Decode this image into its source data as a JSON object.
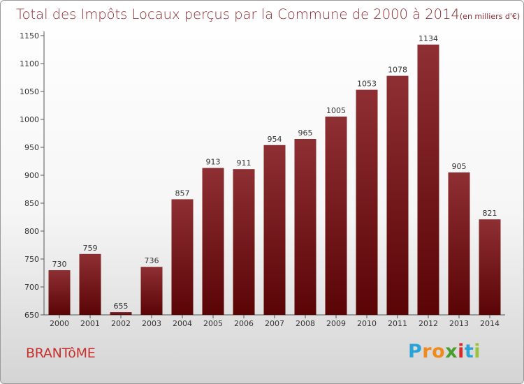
{
  "chart_data": {
    "type": "bar",
    "title": "Total des Impôts Locaux perçus par la Commune de 2000 à 2014",
    "subtitle": "(en milliers d'€)",
    "categories": [
      "2000",
      "2001",
      "2002",
      "2003",
      "2004",
      "2005",
      "2006",
      "2007",
      "2008",
      "2009",
      "2010",
      "2011",
      "2012",
      "2013",
      "2014"
    ],
    "values": [
      730,
      759,
      655,
      736,
      857,
      913,
      911,
      954,
      965,
      1005,
      1053,
      1078,
      1134,
      905,
      821
    ],
    "ylim": [
      650,
      1150
    ],
    "yticks": [
      650,
      700,
      750,
      800,
      850,
      900,
      950,
      1000,
      1050,
      1100,
      1150
    ],
    "grid": false,
    "bar_color": "#7a1518"
  },
  "footer": {
    "commune": "BRANTôME",
    "logo_letters": [
      "P",
      "r",
      "o",
      "x",
      "i",
      "t",
      "i"
    ],
    "logo_colors": [
      "#2aa3d8",
      "#f08a1c",
      "#f08a1c",
      "#4a9e2e",
      "#d42a2a",
      "#2aa3d8",
      "#9ac43a"
    ]
  }
}
